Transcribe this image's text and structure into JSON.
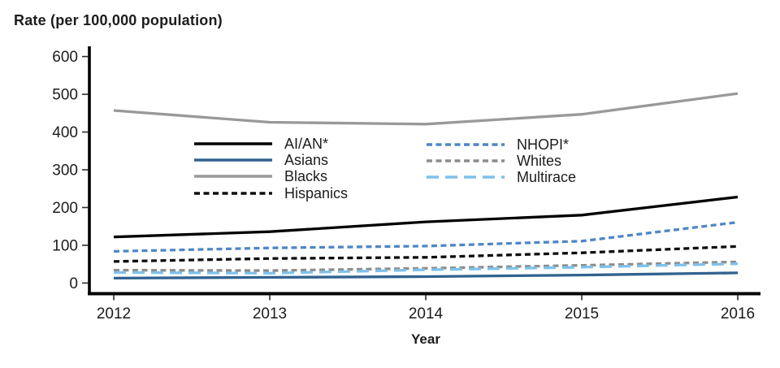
{
  "title": "Rate (per 100,000 population)",
  "chart_data": {
    "type": "line",
    "x": [
      2012,
      2013,
      2014,
      2015,
      2016
    ],
    "xlabel": "Year",
    "ylabel": "Rate (per 100,000 population)",
    "ylim": [
      0,
      600
    ],
    "yticks": [
      0,
      100,
      200,
      300,
      400,
      500,
      600
    ],
    "grid": false,
    "legend_position": "inside top-center, two columns",
    "series": [
      {
        "name": "Blacks",
        "values": [
          457,
          426,
          421,
          447,
          502
        ],
        "color": "#999999",
        "dash": "solid"
      },
      {
        "name": "Whites",
        "values": [
          34,
          33,
          39,
          47,
          56
        ],
        "color": "#8c8c8c",
        "dash": "dashed"
      },
      {
        "name": "Multirace",
        "values": [
          28,
          26,
          35,
          42,
          51
        ],
        "color": "#7ec1ea",
        "dash": "longdash"
      },
      {
        "name": "Asians",
        "values": [
          13,
          15,
          17,
          21,
          27
        ],
        "color": "#31628f",
        "dash": "solid"
      },
      {
        "name": "Hispanics",
        "values": [
          57,
          65,
          68,
          80,
          97
        ],
        "color": "#0d0d0d",
        "dash": "dashed"
      },
      {
        "name": "NHOPI*",
        "values": [
          84,
          93,
          98,
          111,
          161
        ],
        "color": "#4f86c6",
        "dash": "dashed"
      },
      {
        "name": "AI/AN*",
        "values": [
          122,
          136,
          162,
          180,
          228
        ],
        "color": "#000000",
        "dash": "solid"
      }
    ],
    "legend_columns": [
      [
        "AI/AN*",
        "Asians",
        "Blacks",
        "Hispanics"
      ],
      [
        "NHOPI*",
        "Whites",
        "Multirace"
      ]
    ]
  }
}
